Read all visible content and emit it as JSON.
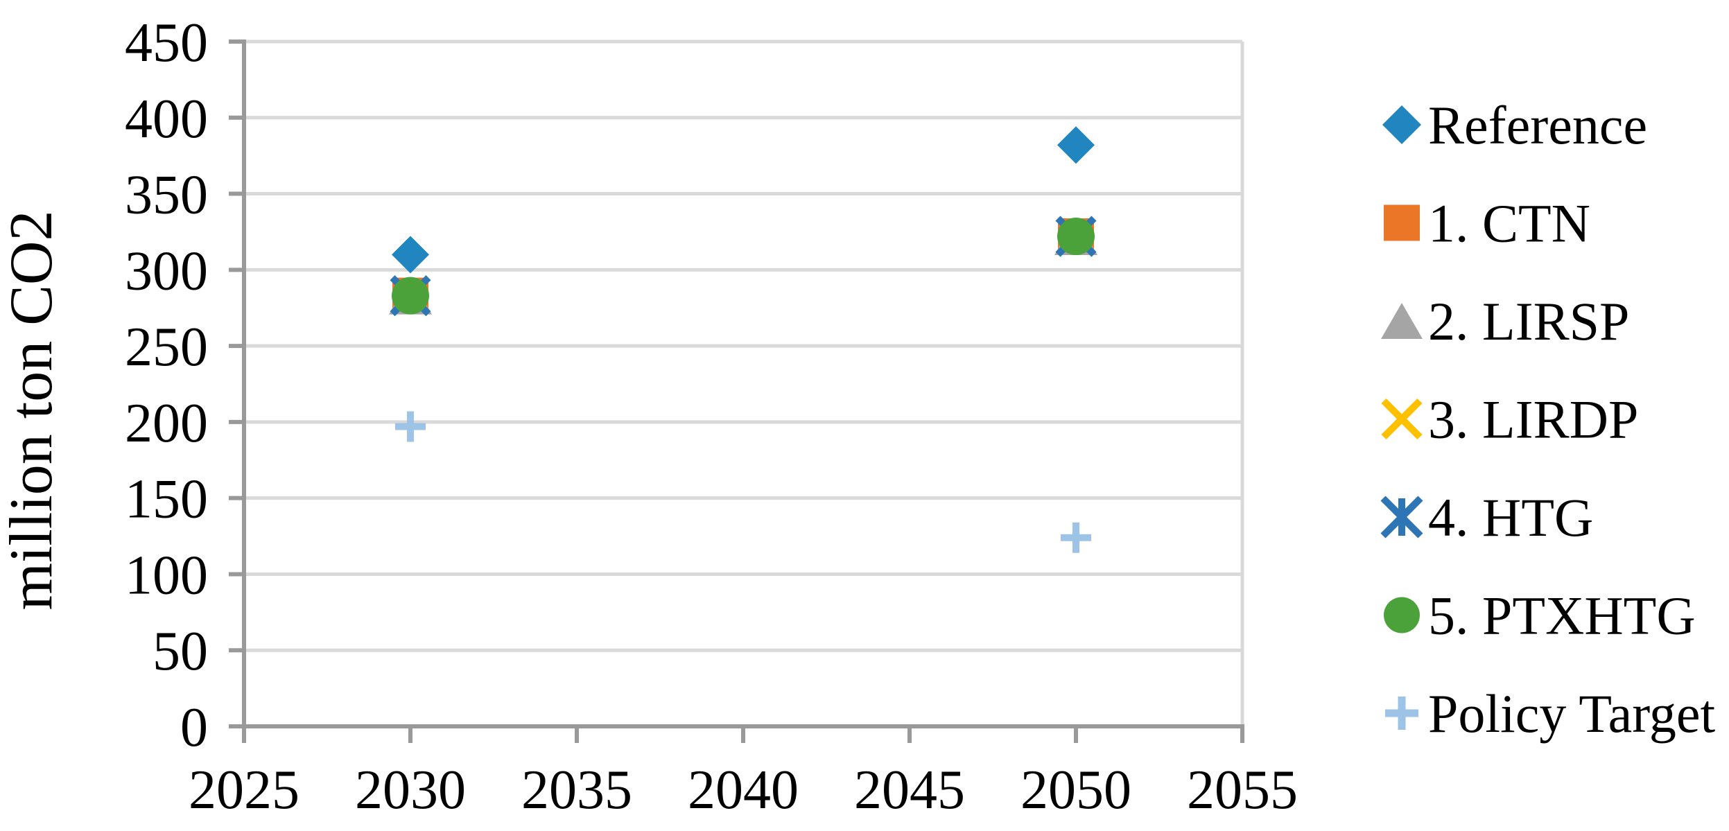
{
  "chart_data": {
    "type": "scatter",
    "title": "",
    "xlabel": "",
    "ylabel": "million ton CO2",
    "xlim": [
      2025,
      2055
    ],
    "ylim": [
      0,
      450
    ],
    "x_ticks": [
      2025,
      2030,
      2035,
      2040,
      2045,
      2050,
      2055
    ],
    "y_ticks": [
      0,
      50,
      100,
      150,
      200,
      250,
      300,
      350,
      400,
      450
    ],
    "grid": "horizontal",
    "legend_position": "right",
    "x": [
      2030,
      2050
    ],
    "series": [
      {
        "name": "Reference",
        "marker": "diamond",
        "color": "#2186C0",
        "values": [
          310,
          382
        ]
      },
      {
        "name": "1. CTN",
        "marker": "square",
        "color": "#EC7628",
        "values": [
          283,
          322
        ]
      },
      {
        "name": "2. LIRSP",
        "marker": "triangle",
        "color": "#A5A5A5",
        "values": [
          283,
          322
        ]
      },
      {
        "name": "3. LIRDP",
        "marker": "x",
        "color": "#FFC000",
        "values": [
          283,
          322
        ]
      },
      {
        "name": "4. HTG",
        "marker": "asterisk",
        "color": "#2E75B6",
        "values": [
          283,
          322
        ]
      },
      {
        "name": "5. PTXHTG",
        "marker": "circle",
        "color": "#4BA23B",
        "values": [
          283,
          322
        ]
      },
      {
        "name": "Policy Target",
        "marker": "plus",
        "color": "#9DC3E6",
        "values": [
          197,
          124
        ]
      }
    ],
    "axis_color": "#999999",
    "grid_color": "#D9D9D9",
    "text_color": "#000000"
  }
}
